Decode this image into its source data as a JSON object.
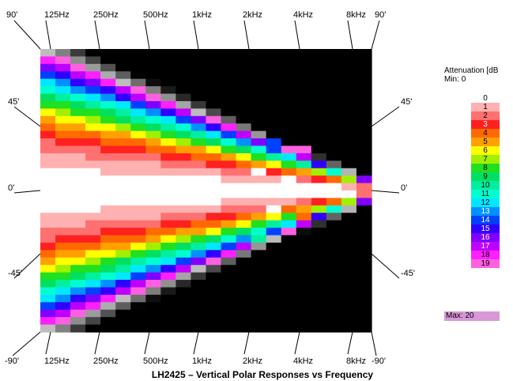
{
  "chart_data": {
    "type": "heatmap",
    "title": "LH2425 – Vertical Polar Responses vs Frequency",
    "top_angle_labels": [
      "90'",
      "90'"
    ],
    "bottom_angle_labels": [
      "-90'",
      "-90'"
    ],
    "left_angle_labels": [
      "45'",
      "0'",
      "-45'"
    ],
    "right_angle_labels": [
      "45'",
      "0'",
      "-45'"
    ],
    "frequency_labels": [
      "125Hz",
      "250Hz",
      "500Hz",
      "1kHz",
      "2kHz",
      "4kHz",
      "8kHz"
    ],
    "frequency_axis": "log",
    "angle_range_deg": [
      -90,
      90
    ],
    "legend": {
      "title": "Attenuation [dB",
      "min_label": "Min:",
      "min_value": "0",
      "max_label": "Max:",
      "max_value": "20",
      "levels": [
        "0",
        "1",
        "2",
        "3",
        "4",
        "5",
        "6",
        "7",
        "8",
        "9",
        "10",
        "11",
        "12",
        "13",
        "14",
        "15",
        "16",
        "17",
        "18",
        "19"
      ],
      "colors": [
        "#ffffff",
        "#ffb0b0",
        "#ff7070",
        "#ff2020",
        "#ff6a00",
        "#ffa000",
        "#ffff00",
        "#a0f000",
        "#20e020",
        "#00e060",
        "#00f0a0",
        "#00ffd0",
        "#00e8ff",
        "#0090ff",
        "#0040ff",
        "#3000ff",
        "#8000ff",
        "#c000ff",
        "#ff20ff",
        "#ff60e0"
      ],
      "max_color": "#d898d8"
    }
  }
}
